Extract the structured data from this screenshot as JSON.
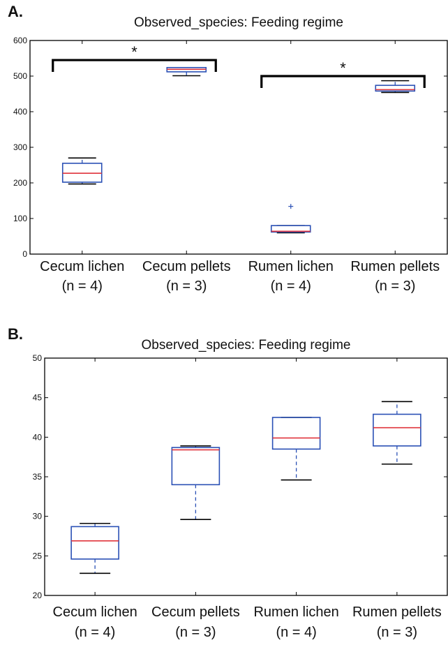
{
  "chart_data": [
    {
      "panel": "A.",
      "type": "box",
      "title": "Observed_species: Feeding regime",
      "ylim": [
        0,
        600
      ],
      "yticks": [
        0,
        100,
        200,
        300,
        400,
        500,
        600
      ],
      "categories": [
        {
          "line1": "Cecum lichen",
          "line2": "(n = 4)"
        },
        {
          "line1": "Cecum pellets",
          "line2": "(n = 3)"
        },
        {
          "line1": "Rumen lichen",
          "line2": "(n = 4)"
        },
        {
          "line1": "Rumen pellets",
          "line2": "(n = 3)"
        }
      ],
      "boxes": [
        {
          "min": 197,
          "q1": 202,
          "median": 227,
          "q3": 255,
          "max": 270,
          "outliers": []
        },
        {
          "min": 501,
          "q1": 512,
          "median": 519,
          "q3": 524,
          "max": 524,
          "outliers": []
        },
        {
          "min": 60,
          "q1": 62,
          "median": 64,
          "q3": 80,
          "max": 80,
          "outliers": [
            134
          ]
        },
        {
          "min": 454,
          "q1": 458,
          "median": 462,
          "q3": 474,
          "max": 487,
          "outliers": []
        }
      ],
      "annotations": [
        {
          "text": "*",
          "from": 0,
          "to": 1,
          "y": 545
        },
        {
          "text": "*",
          "from": 2,
          "to": 3,
          "y": 500
        }
      ]
    },
    {
      "panel": "B.",
      "type": "box",
      "title": "Observed_species: Feeding regime",
      "ylim": [
        20,
        50
      ],
      "yticks": [
        20,
        25,
        30,
        35,
        40,
        45,
        50
      ],
      "categories": [
        {
          "line1": "Cecum lichen",
          "line2": "(n = 4)"
        },
        {
          "line1": "Cecum pellets",
          "line2": "(n = 3)"
        },
        {
          "line1": "Rumen lichen",
          "line2": "(n = 4)"
        },
        {
          "line1": "Rumen pellets",
          "line2": "(n = 3)"
        }
      ],
      "boxes": [
        {
          "min": 22.8,
          "q1": 24.6,
          "median": 26.9,
          "q3": 28.7,
          "max": 29.1,
          "outliers": []
        },
        {
          "min": 29.6,
          "q1": 34.0,
          "median": 38.4,
          "q3": 38.7,
          "max": 38.9,
          "outliers": []
        },
        {
          "min": 34.6,
          "q1": 38.5,
          "median": 39.9,
          "q3": 42.5,
          "max": 42.5,
          "outliers": []
        },
        {
          "min": 36.6,
          "q1": 38.9,
          "median": 41.2,
          "q3": 42.9,
          "max": 44.5,
          "outliers": []
        }
      ],
      "annotations": []
    }
  ],
  "colors": {
    "box": "#2a50b5",
    "median": "#e0343c",
    "whisker": "#2a50b5",
    "cap": "#000000",
    "outlier": "#2a50b5",
    "axis": "#000000"
  }
}
